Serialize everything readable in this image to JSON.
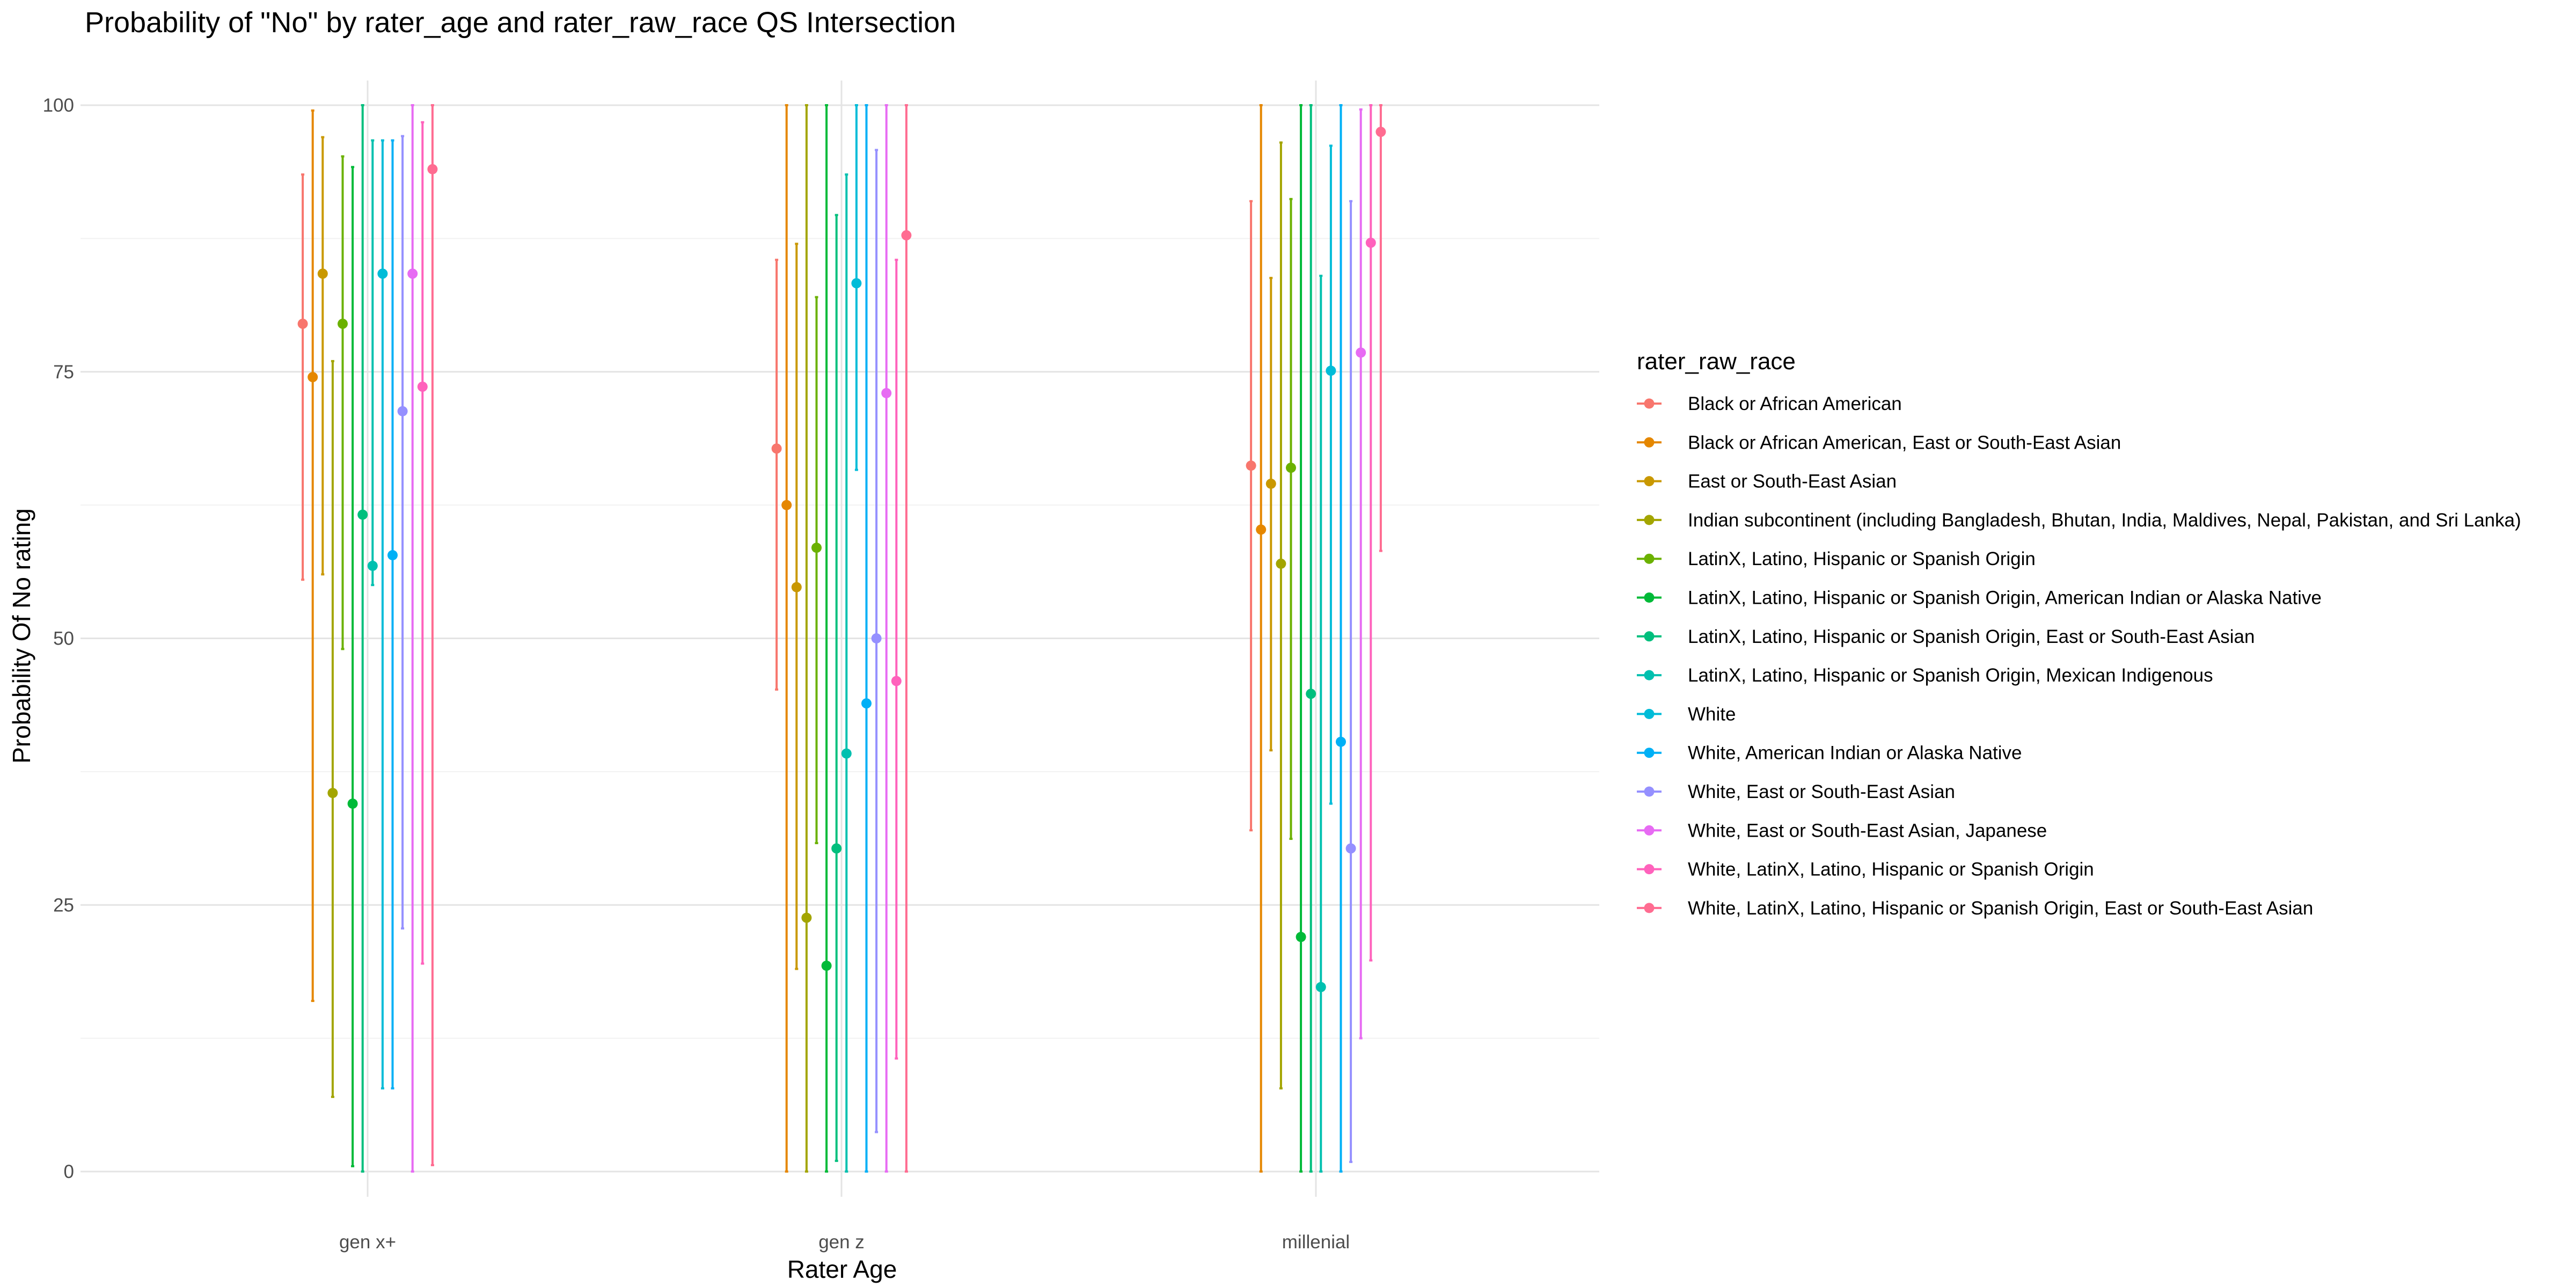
{
  "chart_data": {
    "type": "errorbar",
    "title": "Probability of \"No\" by rater_age and  rater_raw_race  QS Intersection",
    "xlabel": "Rater Age",
    "ylabel": "Probability Of No rating",
    "ylim": [
      0,
      100
    ],
    "y_ticks": [
      0,
      25,
      50,
      75,
      100
    ],
    "grid": true,
    "legend_position": "right",
    "legend_title": "rater_raw_race",
    "categories": [
      "gen x+",
      "gen z",
      "millenial"
    ],
    "series": [
      {
        "name": "Black or African American",
        "color": "#F8766D",
        "mean": [
          79.5,
          67.8,
          66.2
        ],
        "lower": [
          55.5,
          45.2,
          32.0
        ],
        "upper": [
          93.5,
          85.5,
          91.0
        ]
      },
      {
        "name": "Black or African American, East or South-East Asian",
        "color": "#E58700",
        "mean": [
          74.5,
          62.5,
          60.2
        ],
        "lower": [
          16.0,
          0.0,
          0.0
        ],
        "upper": [
          99.5,
          100.0,
          100.0
        ]
      },
      {
        "name": "East or South-East Asian",
        "color": "#C99800",
        "mean": [
          84.2,
          54.8,
          64.5
        ],
        "lower": [
          56.0,
          19.0,
          39.5
        ],
        "upper": [
          97.0,
          87.0,
          83.8
        ]
      },
      {
        "name": "Indian subcontinent (including Bangladesh, Bhutan, India, Maldives, Nepal, Pakistan, and Sri Lanka)",
        "color": "#A3A500",
        "mean": [
          35.5,
          23.8,
          57.0
        ],
        "lower": [
          7.0,
          0.0,
          7.8
        ],
        "upper": [
          76.0,
          100.0,
          96.5
        ]
      },
      {
        "name": "LatinX, Latino, Hispanic or Spanish Origin",
        "color": "#6BB100",
        "mean": [
          79.5,
          58.5,
          66.0
        ],
        "lower": [
          49.0,
          30.8,
          31.2
        ],
        "upper": [
          95.2,
          82.0,
          91.2
        ]
      },
      {
        "name": "LatinX, Latino, Hispanic or Spanish Origin, American Indian or Alaska Native",
        "color": "#00BA38",
        "mean": [
          34.5,
          19.3,
          22.0
        ],
        "lower": [
          0.5,
          0.0,
          0.0
        ],
        "upper": [
          94.2,
          100.0,
          100.0
        ]
      },
      {
        "name": "LatinX, Latino, Hispanic or Spanish Origin, East or South-East Asian",
        "color": "#00BF7D",
        "mean": [
          61.6,
          30.3,
          44.8
        ],
        "lower": [
          0.0,
          1.0,
          0.0
        ],
        "upper": [
          100.0,
          89.7,
          100.0
        ]
      },
      {
        "name": "LatinX, Latino, Hispanic or Spanish Origin, Mexican Indigenous",
        "color": "#00C0AF",
        "mean": [
          56.8,
          39.2,
          17.3
        ],
        "lower": [
          55.0,
          0.0,
          0.0
        ],
        "upper": [
          96.7,
          93.5,
          84.0
        ]
      },
      {
        "name": "White",
        "color": "#00BCD8",
        "mean": [
          84.2,
          83.3,
          75.1
        ],
        "lower": [
          7.8,
          65.8,
          34.5
        ],
        "upper": [
          96.7,
          100.0,
          96.2
        ]
      },
      {
        "name": "White, American Indian or Alaska Native",
        "color": "#00B0F6",
        "mean": [
          57.8,
          43.9,
          40.3
        ],
        "lower": [
          7.8,
          0.0,
          0.0
        ],
        "upper": [
          96.7,
          100.0,
          100.0
        ]
      },
      {
        "name": "White, East or South-East Asian",
        "color": "#9590FF",
        "mean": [
          71.3,
          50.0,
          30.3
        ],
        "lower": [
          22.8,
          3.7,
          0.9
        ],
        "upper": [
          97.1,
          95.8,
          91.0
        ]
      },
      {
        "name": "White, East or South-East Asian, Japanese",
        "color": "#E76BF3",
        "mean": [
          84.2,
          73.0,
          76.8
        ],
        "lower": [
          0.0,
          0.0,
          12.5
        ],
        "upper": [
          100.0,
          100.0,
          99.6
        ]
      },
      {
        "name": "White, LatinX, Latino, Hispanic or Spanish Origin",
        "color": "#FF62BC",
        "mean": [
          73.6,
          46.0,
          87.1
        ],
        "lower": [
          19.5,
          10.6,
          19.8
        ],
        "upper": [
          98.4,
          85.5,
          100.0
        ]
      },
      {
        "name": "White, LatinX, Latino, Hispanic or Spanish Origin, East or South-East Asian",
        "color": "#FF6C91",
        "mean": [
          94.0,
          87.8,
          97.5
        ],
        "lower": [
          0.6,
          0.0,
          58.2
        ],
        "upper": [
          100.0,
          100.0,
          100.0
        ]
      }
    ]
  }
}
